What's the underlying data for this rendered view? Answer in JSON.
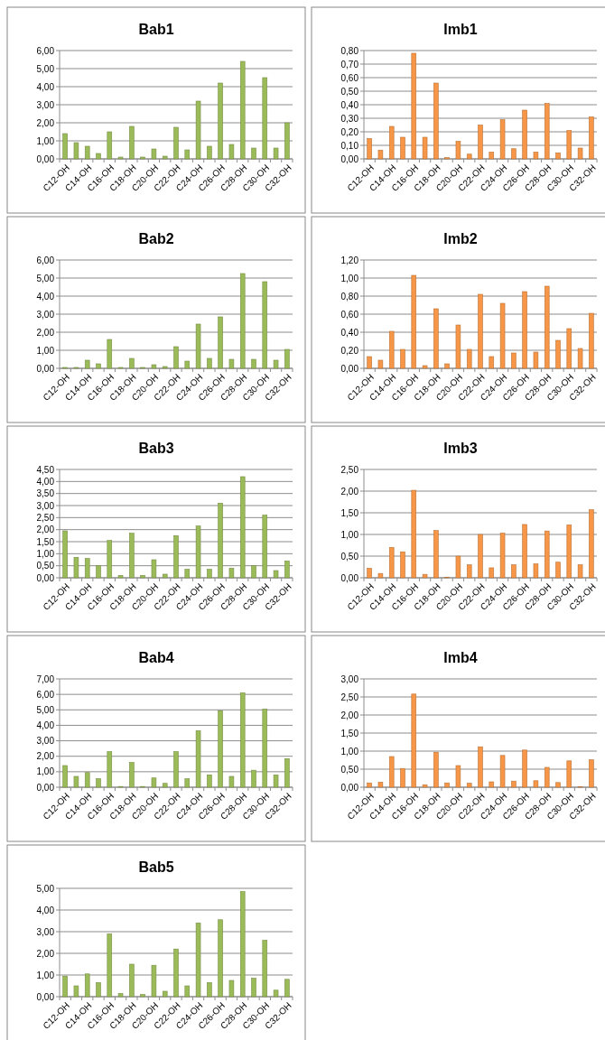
{
  "chart_data": [
    {
      "type": "bar",
      "title": "Bab1",
      "categories": [
        "C12-OH",
        null,
        "C14-OH",
        null,
        "C16-OH",
        null,
        "C18-OH",
        null,
        "C20-OH",
        null,
        "C22-OH",
        null,
        "C24-OH",
        null,
        "C26-OH",
        null,
        "C28-OH",
        null,
        "C30-OH",
        null,
        "C32-OH"
      ],
      "color": "#9bbb59",
      "values": [
        1.4,
        0.9,
        0.7,
        0.3,
        1.5,
        0.1,
        1.8,
        0.1,
        0.55,
        0.15,
        1.75,
        0.5,
        3.2,
        0.7,
        4.2,
        0.8,
        5.4,
        0.6,
        4.5,
        0.6,
        2.0
      ],
      "ylim": [
        0,
        6
      ],
      "yticks": [
        {
          "value": 0,
          "label": "0,00"
        },
        {
          "value": 1,
          "label": "1,00"
        },
        {
          "value": 2,
          "label": "2,00"
        },
        {
          "value": 3,
          "label": "3,00"
        },
        {
          "value": 4,
          "label": "4,00"
        },
        {
          "value": 5,
          "label": "5,00"
        },
        {
          "value": 6,
          "label": "6,00"
        }
      ],
      "grid": "y"
    },
    {
      "type": "bar",
      "title": "Imb1",
      "categories": [
        "C12-OH",
        null,
        "C14-OH",
        null,
        "C16-OH",
        null,
        "C18-OH",
        null,
        "C20-OH",
        null,
        "C22-OH",
        null,
        "C24-OH",
        null,
        "C26-OH",
        null,
        "C28-OH",
        null,
        "C30-OH",
        null,
        "C32-OH"
      ],
      "color": "#f79646",
      "values": [
        0.15,
        0.065,
        0.24,
        0.16,
        0.78,
        0.16,
        0.56,
        0.01,
        0.13,
        0.035,
        0.25,
        0.05,
        0.29,
        0.075,
        0.36,
        0.05,
        0.41,
        0.045,
        0.21,
        0.08,
        0.31
      ],
      "ylim": [
        0,
        0.8
      ],
      "yticks": [
        {
          "value": 0,
          "label": "0,00"
        },
        {
          "value": 0.1,
          "label": "0,10"
        },
        {
          "value": 0.2,
          "label": "0,20"
        },
        {
          "value": 0.3,
          "label": "0,30"
        },
        {
          "value": 0.4,
          "label": "0,40"
        },
        {
          "value": 0.5,
          "label": "0,50"
        },
        {
          "value": 0.6,
          "label": "0,60"
        },
        {
          "value": 0.7,
          "label": "0,70"
        },
        {
          "value": 0.8,
          "label": "0,80"
        }
      ],
      "grid": "y"
    },
    {
      "type": "bar",
      "title": "Bab2",
      "categories": [
        "C12-OH",
        null,
        "C14-OH",
        null,
        "C16-OH",
        null,
        "C18-OH",
        null,
        "C20-OH",
        null,
        "C22-OH",
        null,
        "C24-OH",
        null,
        "C26-OH",
        null,
        "C28-OH",
        null,
        "C30-OH",
        null,
        "C32-OH"
      ],
      "color": "#9bbb59",
      "values": [
        0.05,
        0.05,
        0.45,
        0.25,
        1.6,
        0.05,
        0.55,
        0.05,
        0.2,
        0.1,
        1.2,
        0.4,
        2.45,
        0.55,
        2.85,
        0.5,
        5.25,
        0.5,
        4.8,
        0.45,
        1.05
      ],
      "ylim": [
        0,
        6
      ],
      "yticks": [
        {
          "value": 0,
          "label": "0,00"
        },
        {
          "value": 1,
          "label": "1,00"
        },
        {
          "value": 2,
          "label": "2,00"
        },
        {
          "value": 3,
          "label": "3,00"
        },
        {
          "value": 4,
          "label": "4,00"
        },
        {
          "value": 5,
          "label": "5,00"
        },
        {
          "value": 6,
          "label": "6,00"
        }
      ],
      "grid": "y"
    },
    {
      "type": "bar",
      "title": "Imb2",
      "categories": [
        "C12-OH",
        null,
        "C14-OH",
        null,
        "C16-OH",
        null,
        "C18-OH",
        null,
        "C20-OH",
        null,
        "C22-OH",
        null,
        "C24-OH",
        null,
        "C26-OH",
        null,
        "C28-OH",
        null,
        "C30-OH",
        null,
        "C32-OH"
      ],
      "color": "#f79646",
      "values": [
        0.13,
        0.09,
        0.41,
        0.21,
        1.03,
        0.03,
        0.66,
        0.05,
        0.48,
        0.21,
        0.82,
        0.13,
        0.72,
        0.17,
        0.85,
        0.18,
        0.91,
        0.31,
        0.44,
        0.22,
        0.61
      ],
      "ylim": [
        0,
        1.2
      ],
      "yticks": [
        {
          "value": 0,
          "label": "0,00"
        },
        {
          "value": 0.2,
          "label": "0,20"
        },
        {
          "value": 0.4,
          "label": "0,40"
        },
        {
          "value": 0.6,
          "label": "0,60"
        },
        {
          "value": 0.8,
          "label": "0,80"
        },
        {
          "value": 1,
          "label": "1,00"
        },
        {
          "value": 1.2,
          "label": "1,20"
        }
      ],
      "grid": "y"
    },
    {
      "type": "bar",
      "title": "Bab3",
      "categories": [
        "C12-OH",
        null,
        "C14-OH",
        null,
        "C16-OH",
        null,
        "C18-OH",
        null,
        "C20-OH",
        null,
        "C22-OH",
        null,
        "C24-OH",
        null,
        "C26-OH",
        null,
        "C28-OH",
        null,
        "C30-OH",
        null,
        "C32-OH"
      ],
      "color": "#9bbb59",
      "values": [
        1.95,
        0.85,
        0.8,
        0.5,
        1.55,
        0.1,
        1.85,
        0.1,
        0.75,
        0.15,
        1.75,
        0.35,
        2.15,
        0.35,
        3.1,
        0.4,
        4.2,
        0.5,
        2.6,
        0.3,
        0.7
      ],
      "ylim": [
        0,
        4.5
      ],
      "yticks": [
        {
          "value": 0,
          "label": "0,00"
        },
        {
          "value": 0.5,
          "label": "0,50"
        },
        {
          "value": 1,
          "label": "1,00"
        },
        {
          "value": 1.5,
          "label": "1,50"
        },
        {
          "value": 2,
          "label": "2,00"
        },
        {
          "value": 2.5,
          "label": "2,50"
        },
        {
          "value": 3,
          "label": "3,00"
        },
        {
          "value": 3.5,
          "label": "3,50"
        },
        {
          "value": 4,
          "label": "4,00"
        },
        {
          "value": 4.5,
          "label": "4,50"
        }
      ],
      "grid": "y"
    },
    {
      "type": "bar",
      "title": "Imb3",
      "categories": [
        "C12-OH",
        null,
        "C14-OH",
        null,
        "C16-OH",
        null,
        "C18-OH",
        null,
        "C20-OH",
        null,
        "C22-OH",
        null,
        "C24-OH",
        null,
        "C26-OH",
        null,
        "C28-OH",
        null,
        "C30-OH",
        null,
        "C32-OH"
      ],
      "color": "#f79646",
      "values": [
        0.22,
        0.1,
        0.7,
        0.6,
        2.02,
        0.08,
        1.09,
        0.01,
        0.5,
        0.3,
        1.0,
        0.23,
        1.03,
        0.3,
        1.23,
        0.32,
        1.08,
        0.36,
        1.22,
        0.3,
        1.57
      ],
      "ylim": [
        0,
        2.5
      ],
      "yticks": [
        {
          "value": 0,
          "label": "0,00"
        },
        {
          "value": 0.5,
          "label": "0,50"
        },
        {
          "value": 1,
          "label": "1,00"
        },
        {
          "value": 1.5,
          "label": "1,50"
        },
        {
          "value": 2,
          "label": "2,00"
        },
        {
          "value": 2.5,
          "label": "2,50"
        }
      ],
      "grid": "y"
    },
    {
      "type": "bar",
      "title": "Bab4",
      "categories": [
        "C12-OH",
        null,
        "C14-OH",
        null,
        "C16-OH",
        null,
        "C18-OH",
        null,
        "C20-OH",
        null,
        "C22-OH",
        null,
        "C24-OH",
        null,
        "C26-OH",
        null,
        "C28-OH",
        null,
        "C30-OH",
        null,
        "C32-OH"
      ],
      "color": "#9bbb59",
      "values": [
        1.4,
        0.7,
        0.95,
        0.55,
        2.3,
        0.05,
        1.6,
        0.05,
        0.6,
        0.25,
        2.3,
        0.55,
        3.65,
        0.8,
        4.95,
        0.7,
        6.1,
        1.1,
        5.05,
        0.8,
        1.85
      ],
      "ylim": [
        0,
        7
      ],
      "yticks": [
        {
          "value": 0,
          "label": "0,00"
        },
        {
          "value": 1,
          "label": "1,00"
        },
        {
          "value": 2,
          "label": "2,00"
        },
        {
          "value": 3,
          "label": "3,00"
        },
        {
          "value": 4,
          "label": "4,00"
        },
        {
          "value": 5,
          "label": "5,00"
        },
        {
          "value": 6,
          "label": "6,00"
        },
        {
          "value": 7,
          "label": "7,00"
        }
      ],
      "grid": "y"
    },
    {
      "type": "bar",
      "title": "Imb4",
      "categories": [
        "C12-OH",
        null,
        "C14-OH",
        null,
        "C16-OH",
        null,
        "C18-OH",
        null,
        "C20-OH",
        null,
        "C22-OH",
        null,
        "C24-OH",
        null,
        "C26-OH",
        null,
        "C28-OH",
        null,
        "C30-OH",
        null,
        "C32-OH"
      ],
      "color": "#f79646",
      "values": [
        0.12,
        0.14,
        0.85,
        0.52,
        2.58,
        0.07,
        0.97,
        0.12,
        0.6,
        0.11,
        1.12,
        0.15,
        0.88,
        0.17,
        1.03,
        0.18,
        0.55,
        0.13,
        0.73,
        0.01,
        0.76
      ],
      "ylim": [
        0,
        3
      ],
      "yticks": [
        {
          "value": 0,
          "label": "0,00"
        },
        {
          "value": 0.5,
          "label": "0,50"
        },
        {
          "value": 1,
          "label": "1,00"
        },
        {
          "value": 1.5,
          "label": "1,50"
        },
        {
          "value": 2,
          "label": "2,00"
        },
        {
          "value": 2.5,
          "label": "2,50"
        },
        {
          "value": 3,
          "label": "3,00"
        }
      ],
      "grid": "y"
    },
    {
      "type": "bar",
      "title": "Bab5",
      "categories": [
        "C12-OH",
        null,
        "C14-OH",
        null,
        "C16-OH",
        null,
        "C18-OH",
        null,
        "C20-OH",
        null,
        "C22-OH",
        null,
        "C24-OH",
        null,
        "C26-OH",
        null,
        "C28-OH",
        null,
        "C30-OH",
        null,
        "C32-OH"
      ],
      "color": "#9bbb59",
      "values": [
        0.95,
        0.5,
        1.05,
        0.65,
        2.9,
        0.15,
        1.5,
        0.1,
        1.45,
        0.25,
        2.2,
        0.5,
        3.4,
        0.65,
        3.55,
        0.75,
        4.85,
        0.85,
        2.6,
        0.3,
        0.8
      ],
      "ylim": [
        0,
        5
      ],
      "yticks": [
        {
          "value": 0,
          "label": "0,00"
        },
        {
          "value": 1,
          "label": "1,00"
        },
        {
          "value": 2,
          "label": "2,00"
        },
        {
          "value": 3,
          "label": "3,00"
        },
        {
          "value": 4,
          "label": "4,00"
        },
        {
          "value": 5,
          "label": "5,00"
        }
      ],
      "grid": "y"
    }
  ]
}
